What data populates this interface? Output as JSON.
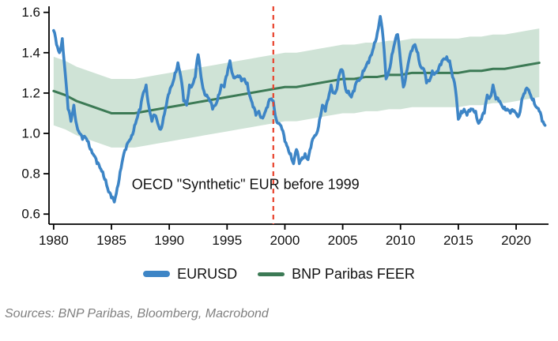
{
  "chart_data": {
    "type": "line",
    "title": "",
    "annotation": "OECD \"Synthetic\" EUR before 1999",
    "annotation_x": 1996.6,
    "annotation_y": 0.725,
    "xlim": [
      1979.6,
      2022.8
    ],
    "ylim": [
      0.55,
      1.63
    ],
    "x_ticks": [
      1980,
      1985,
      1990,
      1995,
      2000,
      2005,
      2010,
      2015,
      2020
    ],
    "y_ticks": [
      0.6,
      0.8,
      1.0,
      1.2,
      1.4,
      1.6
    ],
    "vline_x": 1999,
    "vline_color": "#e8432d",
    "grid": false,
    "legend_position": "bottom",
    "series": [
      {
        "name": "EURUSD",
        "color": "#3d85c6",
        "width": 3.6,
        "jitter": 0.012,
        "x_start": 1980.0,
        "x_step": 0.25,
        "values": [
          1.51,
          1.44,
          1.4,
          1.47,
          1.3,
          1.12,
          1.06,
          1.14,
          1.04,
          1.0,
          0.97,
          0.98,
          0.96,
          0.92,
          0.89,
          0.85,
          0.83,
          0.81,
          0.77,
          0.71,
          0.68,
          0.66,
          0.73,
          0.81,
          0.88,
          0.92,
          0.96,
          0.99,
          1.04,
          1.08,
          1.12,
          1.2,
          1.24,
          1.13,
          1.06,
          1.09,
          1.05,
          1.02,
          1.08,
          1.14,
          1.2,
          1.24,
          1.3,
          1.35,
          1.28,
          1.16,
          1.14,
          1.24,
          1.24,
          1.28,
          1.39,
          1.28,
          1.21,
          1.19,
          1.16,
          1.12,
          1.14,
          1.19,
          1.24,
          1.23,
          1.29,
          1.36,
          1.29,
          1.28,
          1.28,
          1.26,
          1.27,
          1.25,
          1.18,
          1.13,
          1.09,
          1.11,
          1.08,
          1.1,
          1.13,
          1.17,
          1.16,
          1.07,
          1.05,
          1.02,
          0.96,
          0.93,
          0.9,
          0.85,
          0.92,
          0.85,
          0.88,
          0.9,
          0.87,
          0.93,
          0.98,
          1.0,
          1.07,
          1.14,
          1.11,
          1.17,
          1.24,
          1.2,
          1.22,
          1.3,
          1.31,
          1.22,
          1.21,
          1.18,
          1.21,
          1.26,
          1.27,
          1.31,
          1.33,
          1.35,
          1.39,
          1.45,
          1.5,
          1.58,
          1.47,
          1.27,
          1.31,
          1.39,
          1.45,
          1.49,
          1.36,
          1.23,
          1.3,
          1.37,
          1.41,
          1.44,
          1.4,
          1.33,
          1.32,
          1.25,
          1.26,
          1.31,
          1.3,
          1.31,
          1.34,
          1.37,
          1.38,
          1.36,
          1.28,
          1.22,
          1.07,
          1.11,
          1.12,
          1.09,
          1.11,
          1.12,
          1.11,
          1.05,
          1.07,
          1.1,
          1.19,
          1.18,
          1.24,
          1.17,
          1.16,
          1.14,
          1.13,
          1.12,
          1.1,
          1.11,
          1.1,
          1.09,
          1.17,
          1.2,
          1.22,
          1.19,
          1.17,
          1.13,
          1.11,
          1.06,
          1.04
        ]
      },
      {
        "name": "BNP Paribas FEER",
        "color": "#3c7a55",
        "width": 3,
        "band_halfwidth": 0.17,
        "band_color": "#cfe3d6",
        "x_start": 1980,
        "x_step": 1,
        "values": [
          1.21,
          1.19,
          1.16,
          1.14,
          1.12,
          1.1,
          1.1,
          1.1,
          1.11,
          1.12,
          1.13,
          1.14,
          1.15,
          1.16,
          1.17,
          1.18,
          1.19,
          1.2,
          1.21,
          1.22,
          1.23,
          1.23,
          1.24,
          1.25,
          1.26,
          1.27,
          1.27,
          1.28,
          1.28,
          1.29,
          1.29,
          1.3,
          1.3,
          1.3,
          1.3,
          1.3,
          1.31,
          1.31,
          1.32,
          1.32,
          1.33,
          1.34,
          1.35
        ]
      }
    ]
  },
  "footer": {
    "sources": "Sources: BNP Paribas, Bloomberg, Macrobond"
  }
}
